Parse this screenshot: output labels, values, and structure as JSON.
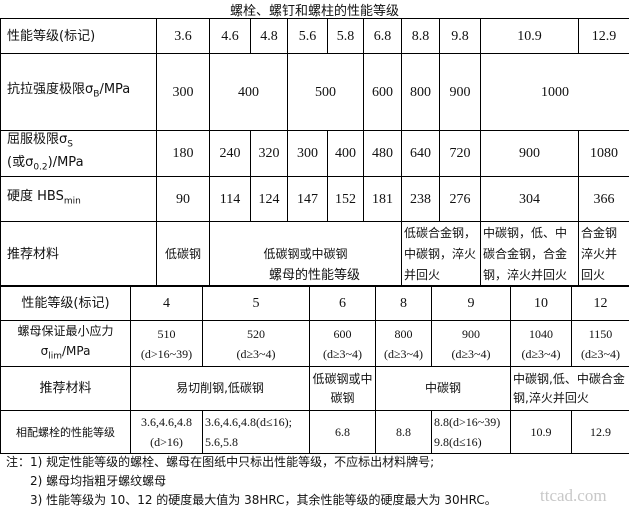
{
  "bolt_table": {
    "title": "螺栓、螺钉和螺柱的性能等级",
    "grade_label": "性能等级(标记)",
    "grades": [
      "3.6",
      "4.6",
      "4.8",
      "5.6",
      "5.8",
      "6.8",
      "8.8",
      "9.8",
      "10.9",
      "12.9"
    ],
    "tensile_label": "抗拉强度极限σ",
    "tensile_sub": "B",
    "tensile_unit": "/MPa",
    "tensile": [
      "300",
      "400",
      "500",
      "600",
      "800",
      "900",
      "1000",
      "1200"
    ],
    "yield_label1": "屈服极限σ",
    "yield_sub1": "S",
    "yield_label2": "(或σ",
    "yield_sub2": "0.2",
    "yield_unit": ")/MPa",
    "yield": [
      "180",
      "240",
      "320",
      "300",
      "400",
      "480",
      "640",
      "720",
      "900",
      "1080"
    ],
    "hardness_label": "硬度 HBS",
    "hardness_sub": "min",
    "hardness": [
      "90",
      "114",
      "124",
      "147",
      "152",
      "181",
      "238",
      "276",
      "304",
      "366"
    ],
    "material_label": "推荐材料",
    "materials": [
      "低碳钢",
      "低碳钢或中碳钢",
      "低碳合金钢，中碳钢，淬火并回火",
      "中碳钢，低、中碳合金钢，合金钢，淬火并回火",
      "合金钢淬火并回火"
    ]
  },
  "nut_table": {
    "title": "螺母的性能等级",
    "grade_label": "性能等级(标记)",
    "grades": [
      "4",
      "5",
      "6",
      "8",
      "9",
      "10",
      "12"
    ],
    "stress_label1": "螺母保证最小应力",
    "stress_label2": "σ",
    "stress_sub": "lim",
    "stress_unit": "/MPa",
    "stress": [
      "510",
      "520",
      "600",
      "800",
      "900",
      "1040",
      "1150"
    ],
    "stress_range": [
      "(d>16~39)",
      "(d≥3~4)",
      "(d≥3~4)",
      "(d≥3~4)",
      "(d≥3~4)",
      "(d≥3~4)",
      "(d≥3~4)"
    ],
    "material_label": "推荐材料",
    "materials": [
      "易切削钢,低碳钢",
      "低碳钢或中碳钢",
      "中碳钢",
      "中碳钢,低、中碳合金钢,淬火并回火"
    ],
    "bolt_label": "相配螺栓的性能等级",
    "bolt_grades": [
      [
        "3.6,4.6,4.8",
        "(d>16)"
      ],
      [
        "3.6,4.6,4.8(d≤16);",
        "5.6,5.8"
      ],
      [
        "6.8"
      ],
      [
        "8.8"
      ],
      [
        "8.8(d>16~39)",
        "9.8(d≤16)"
      ],
      [
        "10.9"
      ],
      [
        "12.9"
      ]
    ]
  },
  "notes": [
    "注：1) 规定性能等级的螺栓、螺母在图纸中只标出性能等级，不应标出材料牌号;",
    "2) 螺母均指粗牙螺纹螺母",
    "3) 性能等级为 10、12 的硬度最大值为 38HRC，其余性能等级的硬度最大为 30HRC。"
  ],
  "watermark": "ttcad.com"
}
